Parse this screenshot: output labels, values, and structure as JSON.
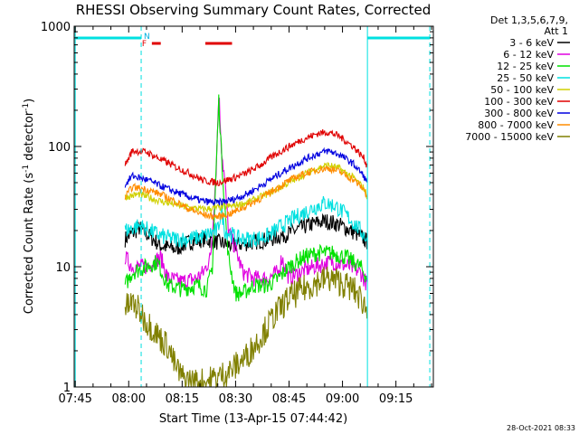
{
  "chart_data": {
    "type": "line",
    "title": "RHESSI Observing Summary Count Rates, Corrected",
    "xlabel": "Start Time (13-Apr-15 07:44:42)",
    "ylabel_main": "Corrected Count Rate (s",
    "ylabel_sup1": "-1",
    "ylabel_mid": " detector",
    "ylabel_sup2": "-1",
    "ylabel_end": ")",
    "yscale": "log",
    "ylim": [
      1,
      1000
    ],
    "xlim_minutes": [
      -0.3,
      100.5
    ],
    "x_ticks": [
      {
        "label": "07:45",
        "min": 0
      },
      {
        "label": "08:00",
        "min": 15
      },
      {
        "label": "08:15",
        "min": 30
      },
      {
        "label": "08:30",
        "min": 45
      },
      {
        "label": "08:45",
        "min": 60
      },
      {
        "label": "09:00",
        "min": 75
      },
      {
        "label": "09:15",
        "min": 90
      }
    ],
    "y_ticks": [
      {
        "label": "1",
        "value": 1
      },
      {
        "label": "10",
        "value": 10
      },
      {
        "label": "100",
        "value": 100
      },
      {
        "label": "1000",
        "value": 1000
      }
    ],
    "legend": {
      "placement": "right",
      "header": [
        "Det 1,3,5,6,7,9,",
        "Att 1"
      ]
    },
    "night_markers": [
      {
        "start_min": 0,
        "end_min": 18.5,
        "color": "#00e0e0"
      },
      {
        "start_min": 82,
        "end_min": 99.5,
        "color": "#00e0e0"
      }
    ],
    "night_label": "N",
    "flare_label": "F",
    "flare_markers": [
      {
        "start_min": 21.5,
        "end_min": 24
      },
      {
        "start_min": 36.5,
        "end_min": 44
      }
    ],
    "vlines": [
      {
        "min": 0,
        "style": "solid",
        "color": "#00e0e0"
      },
      {
        "min": 18.5,
        "style": "dashed",
        "color": "#00e0e0"
      },
      {
        "min": 82,
        "style": "solid",
        "color": "#00e0e0"
      },
      {
        "min": 99.5,
        "style": "dashed",
        "color": "#00e0e0"
      }
    ],
    "series": [
      {
        "name": "3 - 6 keV",
        "color": "#000000",
        "points": [
          [
            14,
            17
          ],
          [
            18,
            21
          ],
          [
            24,
            15
          ],
          [
            28,
            14
          ],
          [
            32,
            16
          ],
          [
            36,
            17
          ],
          [
            40,
            16
          ],
          [
            44,
            15
          ],
          [
            50,
            16
          ],
          [
            55,
            17
          ],
          [
            60,
            19
          ],
          [
            65,
            22
          ],
          [
            70,
            24
          ],
          [
            73,
            23
          ],
          [
            76,
            21
          ],
          [
            80,
            18
          ],
          [
            82,
            16
          ]
        ]
      },
      {
        "name": "6 - 12 keV",
        "color": "#e000e0",
        "points": [
          [
            14,
            12
          ],
          [
            16,
            10
          ],
          [
            20,
            10
          ],
          [
            24,
            12
          ],
          [
            26,
            8
          ],
          [
            30,
            7.5
          ],
          [
            34,
            8
          ],
          [
            36,
            9
          ],
          [
            38,
            12
          ],
          [
            39.5,
            60
          ],
          [
            40.3,
            290
          ],
          [
            41,
            100
          ],
          [
            42,
            50
          ],
          [
            43,
            20
          ],
          [
            45,
            14
          ],
          [
            47,
            9
          ],
          [
            50,
            8
          ],
          [
            54,
            8
          ],
          [
            57,
            9
          ],
          [
            58,
            12
          ],
          [
            60,
            8
          ],
          [
            63,
            9
          ],
          [
            67,
            10
          ],
          [
            72,
            11
          ],
          [
            77,
            10
          ],
          [
            80,
            9
          ],
          [
            82,
            7
          ]
        ]
      },
      {
        "name": "12 - 25 keV",
        "color": "#00e000",
        "points": [
          [
            14,
            7
          ],
          [
            16,
            9
          ],
          [
            20,
            10
          ],
          [
            23,
            11
          ],
          [
            26,
            7
          ],
          [
            30,
            6.5
          ],
          [
            34,
            7
          ],
          [
            37,
            6.5
          ],
          [
            38.5,
            10
          ],
          [
            39.5,
            60
          ],
          [
            40.3,
            250
          ],
          [
            41,
            90
          ],
          [
            42,
            30
          ],
          [
            43,
            12
          ],
          [
            45,
            6
          ],
          [
            47,
            6
          ],
          [
            50,
            7
          ],
          [
            54,
            7
          ],
          [
            57,
            8
          ],
          [
            60,
            10
          ],
          [
            64,
            12
          ],
          [
            68,
            13
          ],
          [
            72,
            13
          ],
          [
            76,
            12
          ],
          [
            80,
            10
          ],
          [
            82,
            8
          ]
        ]
      },
      {
        "name": "25 - 50 keV",
        "color": "#00e0e0",
        "points": [
          [
            14,
            20
          ],
          [
            18,
            22
          ],
          [
            24,
            18
          ],
          [
            28,
            17
          ],
          [
            32,
            17
          ],
          [
            36,
            18
          ],
          [
            40,
            20
          ],
          [
            41,
            30
          ],
          [
            42,
            20
          ],
          [
            46,
            17
          ],
          [
            50,
            17
          ],
          [
            54,
            18
          ],
          [
            58,
            22
          ],
          [
            62,
            26
          ],
          [
            66,
            30
          ],
          [
            70,
            34
          ],
          [
            73,
            32
          ],
          [
            76,
            27
          ],
          [
            80,
            20
          ],
          [
            82,
            17
          ]
        ]
      },
      {
        "name": "50 - 100 keV",
        "color": "#d0d000",
        "points": [
          [
            14,
            38
          ],
          [
            18,
            40
          ],
          [
            24,
            35
          ],
          [
            28,
            33
          ],
          [
            32,
            31
          ],
          [
            36,
            30
          ],
          [
            40,
            31
          ],
          [
            44,
            32
          ],
          [
            48,
            34
          ],
          [
            52,
            38
          ],
          [
            56,
            43
          ],
          [
            60,
            50
          ],
          [
            64,
            58
          ],
          [
            68,
            66
          ],
          [
            71,
            70
          ],
          [
            74,
            66
          ],
          [
            78,
            55
          ],
          [
            81,
            45
          ],
          [
            82,
            38
          ]
        ]
      },
      {
        "name": "100 - 300 keV",
        "color": "#e00000",
        "points": [
          [
            14,
            70
          ],
          [
            16,
            92
          ],
          [
            20,
            90
          ],
          [
            24,
            78
          ],
          [
            28,
            68
          ],
          [
            32,
            60
          ],
          [
            36,
            52
          ],
          [
            40,
            50
          ],
          [
            44,
            54
          ],
          [
            48,
            60
          ],
          [
            52,
            70
          ],
          [
            56,
            85
          ],
          [
            60,
            100
          ],
          [
            64,
            115
          ],
          [
            68,
            128
          ],
          [
            71,
            132
          ],
          [
            74,
            122
          ],
          [
            78,
            100
          ],
          [
            81,
            80
          ],
          [
            82,
            68
          ]
        ]
      },
      {
        "name": "300 - 800 keV",
        "color": "#0000e0",
        "points": [
          [
            14,
            48
          ],
          [
            16,
            57
          ],
          [
            20,
            53
          ],
          [
            24,
            47
          ],
          [
            28,
            42
          ],
          [
            32,
            38
          ],
          [
            36,
            35
          ],
          [
            40,
            34
          ],
          [
            44,
            36
          ],
          [
            48,
            40
          ],
          [
            52,
            47
          ],
          [
            56,
            56
          ],
          [
            60,
            66
          ],
          [
            64,
            77
          ],
          [
            68,
            87
          ],
          [
            71,
            92
          ],
          [
            74,
            86
          ],
          [
            78,
            72
          ],
          [
            81,
            57
          ],
          [
            82,
            48
          ]
        ]
      },
      {
        "name": "800 - 7000 keV",
        "color": "#ff8c00",
        "points": [
          [
            14,
            38
          ],
          [
            16,
            46
          ],
          [
            20,
            44
          ],
          [
            24,
            40
          ],
          [
            28,
            35
          ],
          [
            32,
            30
          ],
          [
            36,
            27
          ],
          [
            40,
            26
          ],
          [
            44,
            28
          ],
          [
            48,
            32
          ],
          [
            52,
            37
          ],
          [
            56,
            44
          ],
          [
            60,
            52
          ],
          [
            64,
            59
          ],
          [
            68,
            64
          ],
          [
            71,
            66
          ],
          [
            74,
            62
          ],
          [
            78,
            53
          ],
          [
            81,
            44
          ],
          [
            82,
            38
          ]
        ]
      },
      {
        "name": "7000 - 15000 keV",
        "color": "#808000",
        "points": [
          [
            14,
            4.5
          ],
          [
            16,
            5
          ],
          [
            18,
            4.3
          ],
          [
            20,
            3.5
          ],
          [
            22,
            3
          ],
          [
            24,
            2.5
          ],
          [
            26,
            2.2
          ],
          [
            28,
            1.5
          ],
          [
            30,
            1.2
          ],
          [
            33,
            1.1
          ],
          [
            36,
            1.1
          ],
          [
            40,
            1.2
          ],
          [
            44,
            1.4
          ],
          [
            48,
            1.8
          ],
          [
            52,
            2.6
          ],
          [
            56,
            4
          ],
          [
            60,
            5.5
          ],
          [
            64,
            6.5
          ],
          [
            68,
            7.5
          ],
          [
            71,
            8
          ],
          [
            74,
            7.5
          ],
          [
            78,
            6.5
          ],
          [
            81,
            5
          ],
          [
            82,
            4
          ]
        ]
      }
    ]
  },
  "footer": {
    "date_stamp": "28-Oct-2021 08:33"
  }
}
